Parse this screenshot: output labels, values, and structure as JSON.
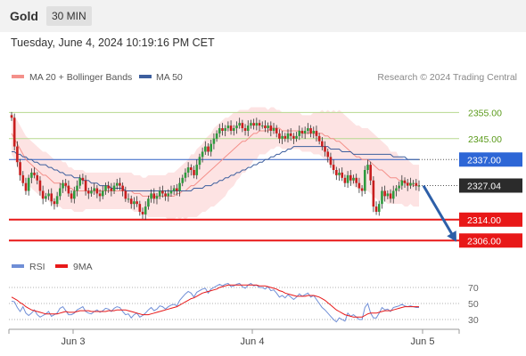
{
  "header": {
    "instrument": "Gold",
    "timeframe": "30 MIN",
    "datetime": "Tuesday, June 4, 2024 10:19:16 PM CET"
  },
  "legend": {
    "items": [
      {
        "label": "MA 20 + Bollinger Bands",
        "color": "#f4908a"
      },
      {
        "label": "MA 50",
        "color": "#3d5f9e"
      }
    ],
    "source": "Research © 2024 Trading Central"
  },
  "rsi_legend": {
    "items": [
      {
        "label": "RSI",
        "color": "#6f8ed6"
      },
      {
        "label": "9MA",
        "color": "#e81818"
      }
    ]
  },
  "chart_data": [
    {
      "type": "candlestick",
      "yaxis_ticks": [
        2355,
        2345
      ],
      "ylim": [
        2302,
        2364
      ],
      "xaxis_ticks": [
        "Jun 3",
        "Jun 4",
        "Jun 5"
      ],
      "levels": [
        {
          "value": 2355,
          "label": "2355.00",
          "kind": "green"
        },
        {
          "value": 2345,
          "label": "2345.00",
          "kind": "green"
        },
        {
          "value": 2337,
          "label": "2337.00",
          "kind": "pivot"
        },
        {
          "value": 2327.04,
          "label": "2327.04",
          "kind": "last"
        },
        {
          "value": 2314,
          "label": "2314.00",
          "kind": "support"
        },
        {
          "value": 2306,
          "label": "2306.00",
          "kind": "support"
        }
      ],
      "close": [
        2353,
        2342,
        2336,
        2331,
        2328,
        2325,
        2330,
        2332,
        2331,
        2329,
        2325,
        2322,
        2323,
        2324,
        2321,
        2320,
        2323,
        2326,
        2328,
        2327,
        2324,
        2322,
        2325,
        2327,
        2330,
        2329,
        2325,
        2324,
        2325,
        2326,
        2324,
        2323,
        2325,
        2327,
        2326,
        2325,
        2327,
        2328,
        2327,
        2325,
        2322,
        2322,
        2320,
        2321,
        2320,
        2317,
        2316,
        2319,
        2322,
        2324,
        2322,
        2323,
        2325,
        2324,
        2323,
        2324,
        2325,
        2326,
        2325,
        2328,
        2330,
        2332,
        2334,
        2333,
        2331,
        2335,
        2338,
        2340,
        2342,
        2340,
        2343,
        2345,
        2347,
        2349,
        2348,
        2349,
        2350,
        2348,
        2349,
        2350,
        2351,
        2349,
        2348,
        2350,
        2351,
        2350,
        2351,
        2350,
        2350,
        2349,
        2350,
        2348,
        2349,
        2347,
        2345,
        2346,
        2345,
        2347,
        2346,
        2345,
        2346,
        2348,
        2347,
        2348,
        2349,
        2347,
        2348,
        2346,
        2344,
        2342,
        2340,
        2338,
        2335,
        2333,
        2331,
        2332,
        2330,
        2328,
        2331,
        2329,
        2330,
        2328,
        2326,
        2325,
        2333,
        2335,
        2329,
        2319,
        2317,
        2320,
        2325,
        2323,
        2324,
        2322,
        2325,
        2326,
        2327,
        2329,
        2328,
        2327,
        2328,
        2328,
        2327,
        2327
      ],
      "ma20": [
        2347,
        2345,
        2343,
        2341,
        2339,
        2337,
        2336,
        2335,
        2334,
        2333,
        2332,
        2331,
        2331,
        2330,
        2329,
        2328,
        2328,
        2328,
        2327,
        2327,
        2326,
        2326,
        2325,
        2325,
        2325,
        2325,
        2325,
        2325,
        2325,
        2325,
        2325,
        2325,
        2325,
        2325,
        2325,
        2325,
        2325,
        2325,
        2325,
        2325,
        2325,
        2325,
        2325,
        2324,
        2324,
        2324,
        2323,
        2323,
        2323,
        2323,
        2323,
        2323,
        2323,
        2323,
        2323,
        2323,
        2323,
        2323,
        2324,
        2324,
        2325,
        2325,
        2326,
        2327,
        2327,
        2328,
        2329,
        2330,
        2331,
        2332,
        2333,
        2334,
        2335,
        2336,
        2337,
        2338,
        2339,
        2340,
        2341,
        2342,
        2343,
        2344,
        2344,
        2345,
        2346,
        2347,
        2347,
        2348,
        2348,
        2348,
        2348,
        2349,
        2349,
        2349,
        2349,
        2348,
        2348,
        2348,
        2348,
        2348,
        2348,
        2348,
        2347,
        2347,
        2347,
        2347,
        2347,
        2347,
        2347,
        2347,
        2346,
        2346,
        2345,
        2345,
        2344,
        2344,
        2343,
        2342,
        2341,
        2340,
        2339,
        2338,
        2338,
        2337,
        2337,
        2337,
        2336,
        2335,
        2334,
        2333,
        2333,
        2332,
        2331,
        2330,
        2330,
        2330,
        2329,
        2329,
        2328,
        2328,
        2328,
        2327,
        2327,
        2327
      ],
      "ma50": [
        2340,
        2340,
        2339,
        2339,
        2338,
        2338,
        2337,
        2337,
        2336,
        2336,
        2335,
        2335,
        2335,
        2334,
        2334,
        2333,
        2333,
        2332,
        2332,
        2331,
        2331,
        2331,
        2330,
        2330,
        2330,
        2329,
        2329,
        2329,
        2328,
        2328,
        2328,
        2327,
        2327,
        2327,
        2327,
        2326,
        2326,
        2326,
        2326,
        2326,
        2325,
        2325,
        2325,
        2325,
        2325,
        2325,
        2325,
        2325,
        2325,
        2325,
        2325,
        2325,
        2325,
        2325,
        2325,
        2325,
        2325,
        2325,
        2325,
        2325,
        2325,
        2325,
        2325,
        2325,
        2326,
        2326,
        2326,
        2326,
        2327,
        2327,
        2327,
        2328,
        2328,
        2329,
        2329,
        2330,
        2330,
        2331,
        2331,
        2332,
        2332,
        2333,
        2333,
        2334,
        2334,
        2335,
        2335,
        2336,
        2336,
        2337,
        2337,
        2338,
        2338,
        2339,
        2339,
        2340,
        2340,
        2341,
        2341,
        2342,
        2342,
        2342,
        2342,
        2342,
        2342,
        2342,
        2342,
        2342,
        2342,
        2342,
        2342,
        2342,
        2341,
        2341,
        2341,
        2341,
        2340,
        2340,
        2340,
        2340,
        2339,
        2339,
        2339,
        2339,
        2339,
        2339,
        2339,
        2339,
        2339,
        2339,
        2339,
        2339,
        2339,
        2339,
        2338,
        2338,
        2338,
        2338,
        2338,
        2337,
        2337,
        2337,
        2337,
        2337
      ],
      "bb_width": [
        8,
        8,
        9,
        9,
        9,
        9,
        9,
        9,
        9,
        9,
        9,
        9,
        9,
        9,
        9,
        9,
        9,
        9,
        9,
        9,
        8,
        8,
        8,
        8,
        8,
        8,
        7,
        7,
        7,
        7,
        7,
        7,
        7,
        7,
        7,
        7,
        7,
        7,
        7,
        7,
        7,
        7,
        7,
        7,
        7,
        7,
        7,
        7,
        8,
        8,
        8,
        8,
        8,
        8,
        8,
        9,
        9,
        9,
        9,
        10,
        10,
        11,
        11,
        12,
        12,
        13,
        13,
        13,
        14,
        14,
        14,
        15,
        15,
        15,
        15,
        15,
        14,
        14,
        14,
        13,
        13,
        12,
        12,
        11,
        11,
        10,
        10,
        9,
        9,
        9,
        8,
        8,
        8,
        7,
        7,
        7,
        7,
        7,
        7,
        7,
        7,
        7,
        7,
        7,
        7,
        7,
        8,
        8,
        8,
        9,
        9,
        10,
        10,
        11,
        11,
        12,
        12,
        12,
        12,
        12,
        12,
        12,
        12,
        12,
        12,
        12,
        12,
        12,
        12,
        12,
        11,
        11,
        11,
        10,
        10,
        10,
        9,
        9,
        9,
        9,
        8,
        8,
        8,
        8
      ],
      "projection": {
        "from": 2327,
        "to": 2306
      }
    },
    {
      "type": "line",
      "yaxis_ticks": [
        70,
        50,
        30
      ],
      "ylim": [
        20,
        80
      ],
      "series": [
        {
          "name": "RSI",
          "values": [
            53,
            52,
            45,
            40,
            46,
            38,
            35,
            38,
            42,
            36,
            33,
            35,
            37,
            40,
            34,
            36,
            38,
            44,
            46,
            41,
            36,
            36,
            38,
            42,
            44,
            46,
            40,
            38,
            37,
            40,
            42,
            39,
            41,
            44,
            43,
            40,
            44,
            46,
            45,
            40,
            36,
            37,
            32,
            36,
            38,
            33,
            35,
            38,
            42,
            45,
            41,
            43,
            47,
            46,
            43,
            46,
            48,
            49,
            47,
            54,
            58,
            62,
            65,
            63,
            58,
            64,
            66,
            68,
            69,
            63,
            68,
            70,
            72,
            74,
            72,
            74,
            75,
            71,
            72,
            74,
            75,
            71,
            69,
            73,
            75,
            72,
            73,
            70,
            70,
            68,
            71,
            66,
            67,
            63,
            58,
            60,
            57,
            61,
            58,
            55,
            58,
            62,
            59,
            61,
            63,
            58,
            60,
            55,
            50,
            45,
            42,
            38,
            34,
            30,
            27,
            32,
            30,
            28,
            38,
            34,
            36,
            33,
            30,
            30,
            45,
            50,
            38,
            32,
            32,
            38,
            45,
            42,
            43,
            40,
            45,
            46,
            47,
            49,
            47,
            46,
            47,
            46,
            45,
            45
          ]
        },
        {
          "name": "9MA",
          "values": [
            58,
            56,
            54,
            51,
            49,
            46,
            44,
            42,
            41,
            40,
            39,
            38,
            37,
            37,
            37,
            37,
            37,
            38,
            39,
            40,
            39,
            39,
            39,
            40,
            41,
            41,
            41,
            41,
            40,
            40,
            40,
            40,
            40,
            40,
            41,
            41,
            41,
            42,
            42,
            42,
            42,
            41,
            40,
            39,
            38,
            37,
            36,
            36,
            36,
            37,
            38,
            39,
            40,
            41,
            42,
            43,
            44,
            45,
            46,
            48,
            50,
            52,
            54,
            56,
            57,
            59,
            61,
            63,
            64,
            65,
            66,
            67,
            68,
            70,
            71,
            72,
            73,
            73,
            73,
            73,
            73,
            73,
            73,
            73,
            73,
            73,
            73,
            72,
            72,
            72,
            71,
            70,
            69,
            68,
            66,
            65,
            63,
            62,
            61,
            60,
            59,
            59,
            59,
            59,
            60,
            60,
            60,
            59,
            58,
            56,
            54,
            51,
            48,
            45,
            42,
            40,
            38,
            36,
            35,
            34,
            33,
            33,
            33,
            33,
            35,
            37,
            38,
            38,
            38,
            39,
            40,
            41,
            41,
            41,
            42,
            43,
            44,
            45,
            46,
            46,
            46,
            46,
            46,
            46
          ]
        }
      ]
    }
  ]
}
